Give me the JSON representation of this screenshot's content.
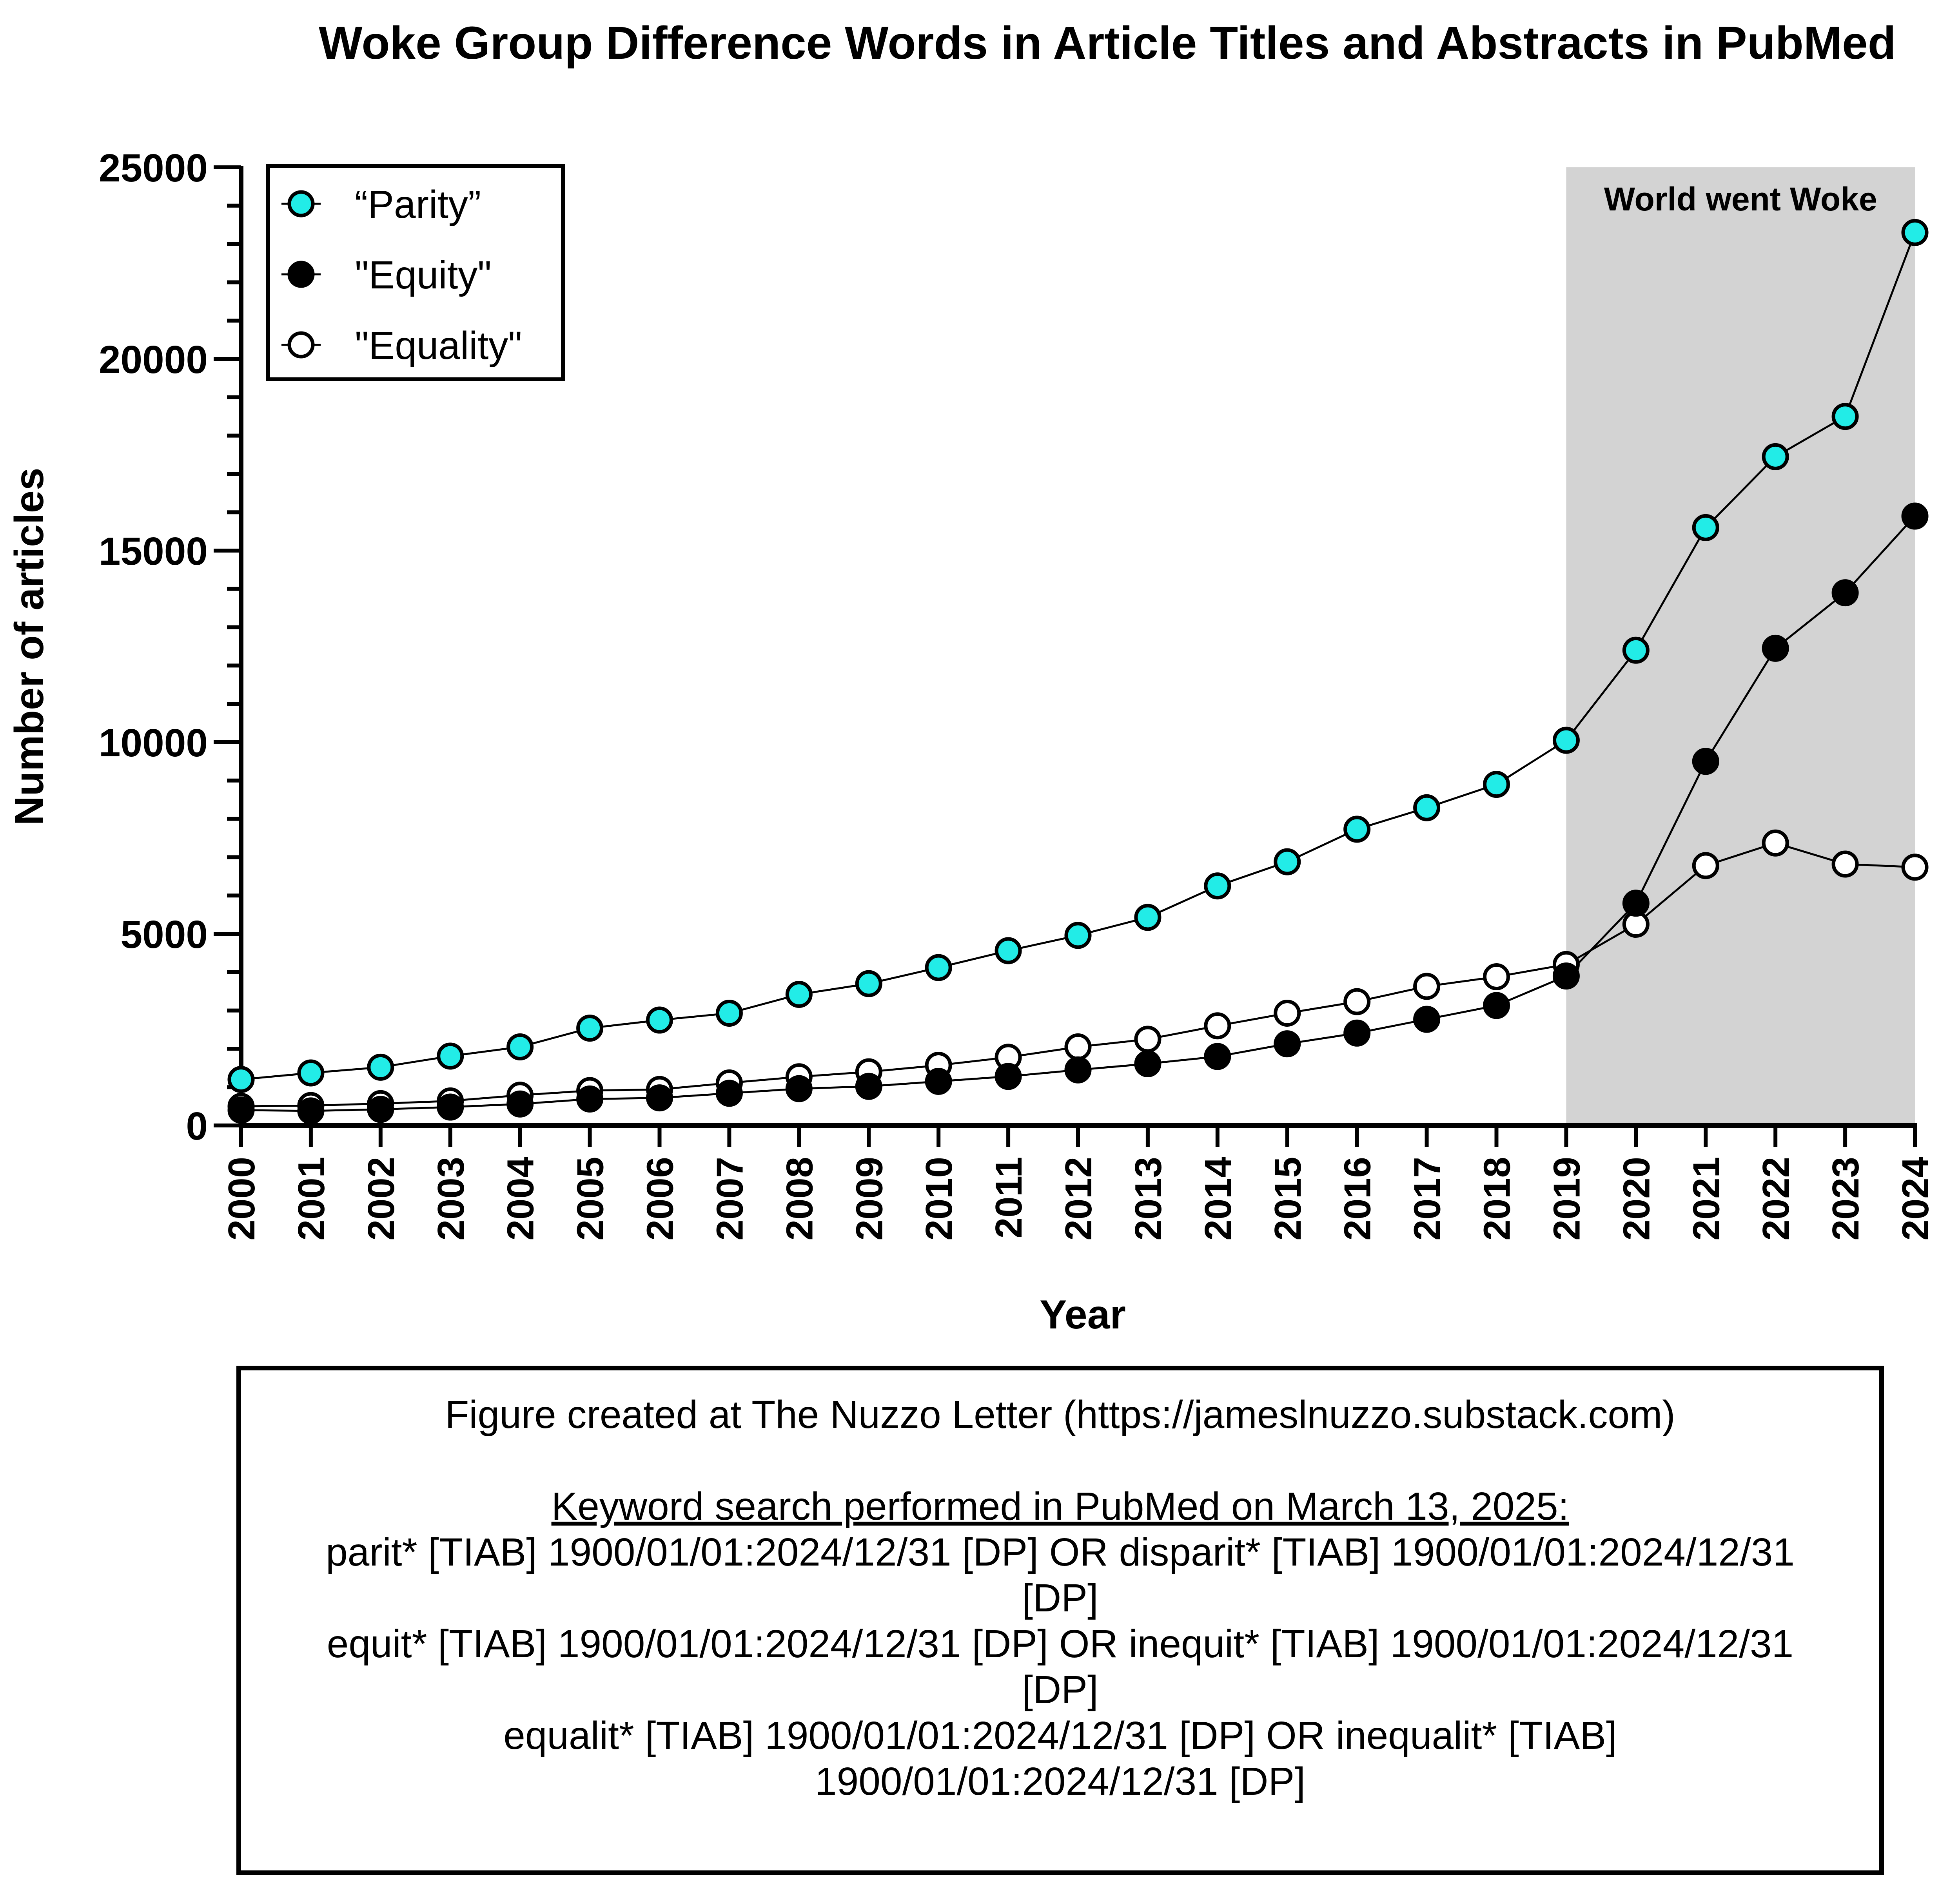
{
  "chart_data": {
    "type": "line",
    "title": "Woke Group Difference Words in Article Titles and Abstracts in PubMed",
    "xlabel": "Year",
    "ylabel": "Number of articles",
    "x": [
      2000,
      2001,
      2002,
      2003,
      2004,
      2005,
      2006,
      2007,
      2008,
      2009,
      2010,
      2011,
      2012,
      2013,
      2014,
      2015,
      2016,
      2017,
      2018,
      2019,
      2020,
      2021,
      2022,
      2023,
      2024
    ],
    "ylim": [
      0,
      25000
    ],
    "yticks": [
      0,
      5000,
      10000,
      15000,
      20000,
      25000
    ],
    "legend_position": "top-left",
    "series": [
      {
        "name": "“Parity”",
        "marker": "filled-cyan-circle",
        "color": "#22ECE7",
        "values": [
          1200,
          1370,
          1520,
          1810,
          2050,
          2540,
          2750,
          2930,
          3420,
          3700,
          4120,
          4560,
          4960,
          5430,
          6250,
          6880,
          7730,
          8290,
          8900,
          10050,
          12400,
          15600,
          17450,
          18500,
          23300
        ]
      },
      {
        "name": "\"Equity\"",
        "marker": "filled-black-circle",
        "color": "#000000",
        "values": [
          400,
          380,
          420,
          480,
          560,
          690,
          720,
          840,
          960,
          1020,
          1150,
          1280,
          1450,
          1610,
          1800,
          2130,
          2410,
          2770,
          3130,
          3900,
          5800,
          9500,
          12450,
          13900,
          15900
        ]
      },
      {
        "name": "\"Equality\"",
        "marker": "open-circle",
        "color": "#ffffff",
        "values": [
          500,
          520,
          570,
          640,
          790,
          910,
          940,
          1110,
          1270,
          1400,
          1570,
          1780,
          2050,
          2250,
          2600,
          2930,
          3230,
          3630,
          3880,
          4200,
          5250,
          6780,
          7370,
          6820,
          6740
        ]
      }
    ],
    "shaded_region": {
      "x_start": 2019,
      "x_end": 2024,
      "label": "World went Woke",
      "color": "#d3d3d3"
    }
  },
  "note": {
    "credit": "Figure created at The Nuzzo Letter (https://jameslnuzzo.substack.com)",
    "search_heading": "Keyword search performed in PubMed on March 13, 2025:",
    "lines": [
      "parit* [TIAB] 1900/01/01:2024/12/31 [DP] OR disparit* [TIAB] 1900/01/01:2024/12/31",
      "[DP]",
      "equit* [TIAB] 1900/01/01:2024/12/31 [DP] OR inequit* [TIAB] 1900/01/01:2024/12/31",
      "[DP]",
      "equalit* [TIAB] 1900/01/01:2024/12/31 [DP] OR inequalit* [TIAB]",
      "1900/01/01:2024/12/31 [DP]"
    ]
  }
}
